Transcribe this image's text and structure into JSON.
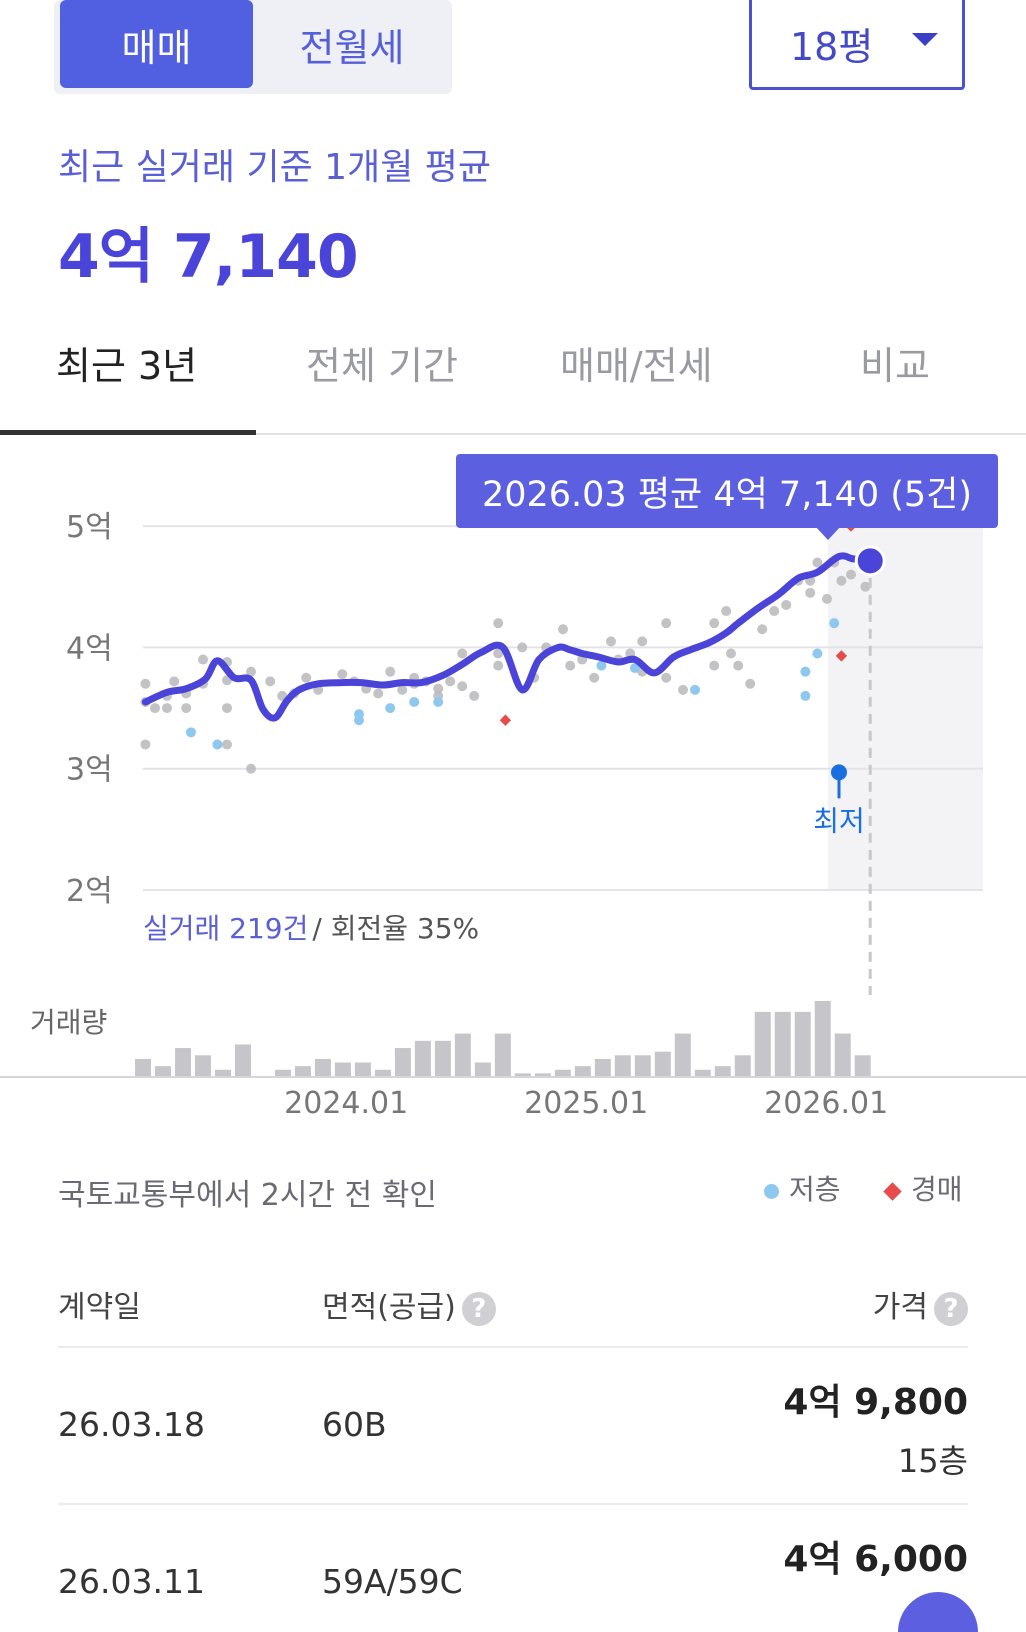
{
  "toggle": {
    "sale": "매매",
    "rent": "전월세"
  },
  "size_select": {
    "value": "18평"
  },
  "summary": {
    "subtitle": "최근 실거래 기준 1개월 평균",
    "price": "4억 7,140"
  },
  "tabs": [
    "최근 3년",
    "전체 기간",
    "매매/전세",
    "비교"
  ],
  "tooltip": "2026.03 평균 4억 7,140 (5건)",
  "min_marker_label": "최저",
  "deal_stats": {
    "count": "실거래 219건",
    "turnover": " / 회전율 35%"
  },
  "volume_label": "거래량",
  "source_note": "국토교통부에서 2시간 전 확인",
  "legend": {
    "low_floor": "저층",
    "auction": "경매"
  },
  "colors": {
    "accent": "#4f4fd8",
    "low_floor": "#8ec8ef",
    "auction": "#e84b4b",
    "min_marker": "#1a6fe0"
  },
  "chart_data": {
    "type": "line",
    "y_tick_labels": [
      "5억",
      "4억",
      "3억",
      "2억"
    ],
    "y_ticks": [
      5,
      4,
      3,
      2
    ],
    "ylim": [
      2,
      5.1
    ],
    "x_tick_labels": [
      "2024.01",
      "2025.01",
      "2026.01"
    ],
    "x_ticks": [
      2024.0,
      2025.0,
      2026.0
    ],
    "xlim": [
      2023.17,
      2026.67
    ],
    "avg_line": {
      "x": [
        2023.18,
        2023.27,
        2023.35,
        2023.43,
        2023.48,
        2023.55,
        2023.62,
        2023.67,
        2023.72,
        2023.77,
        2023.82,
        2023.9,
        2024.0,
        2024.08,
        2024.17,
        2024.25,
        2024.33,
        2024.42,
        2024.5,
        2024.58,
        2024.67,
        2024.75,
        2024.82,
        2024.9,
        2024.95,
        2025.0,
        2025.07,
        2025.15,
        2025.22,
        2025.3,
        2025.38,
        2025.45,
        2025.53,
        2025.6,
        2025.65,
        2025.73,
        2025.82,
        2025.9,
        2025.98,
        2026.07,
        2026.13,
        2026.18,
        2026.2
      ],
      "y": [
        3.55,
        3.63,
        3.66,
        3.74,
        3.89,
        3.75,
        3.73,
        3.49,
        3.42,
        3.56,
        3.65,
        3.7,
        3.71,
        3.71,
        3.69,
        3.71,
        3.71,
        3.77,
        3.86,
        3.96,
        4.0,
        3.65,
        3.9,
        4.0,
        3.98,
        3.95,
        3.92,
        3.88,
        3.9,
        3.79,
        3.92,
        3.98,
        4.04,
        4.12,
        4.2,
        4.32,
        4.44,
        4.57,
        4.62,
        4.75,
        4.73,
        4.73,
        4.71
      ]
    },
    "deals": [
      [
        2023.18,
        3.7
      ],
      [
        2023.18,
        3.55
      ],
      [
        2023.18,
        3.2
      ],
      [
        2023.22,
        3.5
      ],
      [
        2023.27,
        3.6
      ],
      [
        2023.27,
        3.5
      ],
      [
        2023.3,
        3.72
      ],
      [
        2023.35,
        3.62
      ],
      [
        2023.35,
        3.5
      ],
      [
        2023.42,
        3.9
      ],
      [
        2023.42,
        3.7
      ],
      [
        2023.52,
        3.88
      ],
      [
        2023.52,
        3.73
      ],
      [
        2023.52,
        3.5
      ],
      [
        2023.52,
        3.2
      ],
      [
        2023.62,
        3.8
      ],
      [
        2023.62,
        3.0
      ],
      [
        2023.7,
        3.72
      ],
      [
        2023.75,
        3.6
      ],
      [
        2023.8,
        3.62
      ],
      [
        2023.85,
        3.75
      ],
      [
        2023.9,
        3.65
      ],
      [
        2024.0,
        3.78
      ],
      [
        2024.05,
        3.72
      ],
      [
        2024.1,
        3.66
      ],
      [
        2024.15,
        3.62
      ],
      [
        2024.2,
        3.8
      ],
      [
        2024.25,
        3.65
      ],
      [
        2024.3,
        3.75
      ],
      [
        2024.3,
        3.7
      ],
      [
        2024.35,
        3.72
      ],
      [
        2024.4,
        3.66
      ],
      [
        2024.4,
        3.6
      ],
      [
        2024.45,
        3.72
      ],
      [
        2024.5,
        3.95
      ],
      [
        2024.5,
        3.68
      ],
      [
        2024.55,
        3.6
      ],
      [
        2024.65,
        4.2
      ],
      [
        2024.65,
        3.95
      ],
      [
        2024.65,
        3.85
      ],
      [
        2024.75,
        4.0
      ],
      [
        2024.8,
        3.75
      ],
      [
        2024.85,
        4.0
      ],
      [
        2024.92,
        4.15
      ],
      [
        2024.95,
        3.85
      ],
      [
        2025.0,
        3.9
      ],
      [
        2025.05,
        3.75
      ],
      [
        2025.12,
        4.05
      ],
      [
        2025.15,
        3.9
      ],
      [
        2025.2,
        3.95
      ],
      [
        2025.25,
        4.05
      ],
      [
        2025.25,
        3.8
      ],
      [
        2025.35,
        4.2
      ],
      [
        2025.35,
        3.75
      ],
      [
        2025.42,
        3.65
      ],
      [
        2025.55,
        4.2
      ],
      [
        2025.55,
        3.85
      ],
      [
        2025.6,
        4.3
      ],
      [
        2025.62,
        3.95
      ],
      [
        2025.65,
        3.85
      ],
      [
        2025.7,
        3.7
      ],
      [
        2025.75,
        4.15
      ],
      [
        2025.8,
        4.3
      ],
      [
        2025.85,
        4.35
      ],
      [
        2025.9,
        4.55
      ],
      [
        2025.95,
        4.55
      ],
      [
        2025.95,
        4.45
      ],
      [
        2025.98,
        4.7
      ],
      [
        2026.02,
        4.4
      ],
      [
        2026.05,
        4.7
      ],
      [
        2026.08,
        4.55
      ],
      [
        2026.12,
        4.6
      ],
      [
        2026.18,
        4.5
      ]
    ],
    "low_floor_deals": [
      [
        2023.37,
        3.3
      ],
      [
        2023.48,
        3.2
      ],
      [
        2024.07,
        3.45
      ],
      [
        2024.07,
        3.4
      ],
      [
        2024.2,
        3.5
      ],
      [
        2024.3,
        3.55
      ],
      [
        2024.4,
        3.55
      ],
      [
        2025.08,
        3.85
      ],
      [
        2025.22,
        3.83
      ],
      [
        2025.47,
        3.65
      ],
      [
        2025.93,
        3.8
      ],
      [
        2025.93,
        3.6
      ],
      [
        2026.05,
        4.2
      ],
      [
        2025.98,
        3.95
      ]
    ],
    "auction_deals": [
      [
        2024.68,
        3.4
      ],
      [
        2026.08,
        3.93
      ],
      [
        2026.12,
        5.0
      ]
    ],
    "min_point": [
      2026.07,
      2.97
    ],
    "current_point": [
      2026.2,
      4.714
    ],
    "volume": [
      5,
      3,
      8,
      6,
      2,
      9,
      0,
      2,
      3,
      5,
      4,
      4,
      2,
      8,
      10,
      10,
      12,
      4,
      12,
      1,
      1,
      2,
      3,
      5,
      6,
      6,
      7,
      12,
      2,
      3,
      6,
      18,
      18,
      18,
      21,
      12,
      6
    ],
    "volume_x_start": 2023.17,
    "volume_step": 0.0833
  },
  "table": {
    "headers": {
      "date": "계약일",
      "area": "면적(공급)",
      "price": "가격"
    },
    "help_mark": "?",
    "rows": [
      {
        "date": "26.03.18",
        "area": "60B",
        "price": "4억 9,800",
        "floor": "15층"
      },
      {
        "date": "26.03.11",
        "area": "59A/59C",
        "price": "4억 6,000",
        "floor": ""
      }
    ]
  }
}
